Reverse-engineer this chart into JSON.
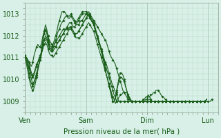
{
  "background_color": "#d8f0e8",
  "grid_color": "#b8d8c8",
  "line_color": "#1a5e1a",
  "marker": "D",
  "marker_size": 2,
  "line_width": 0.8,
  "xlabel": "Pression niveau de la mer( hPa )",
  "xlabel_fontsize": 7.5,
  "tick_label_fontsize": 7,
  "xtick_labels": [
    "Ven",
    "Sam",
    "Dim",
    "Lun"
  ],
  "xtick_positions": [
    0,
    48,
    96,
    144
  ],
  "ylim": [
    1008.5,
    1013.5
  ],
  "yticks": [
    1009,
    1010,
    1011,
    1012,
    1013
  ],
  "xlim": [
    0,
    152
  ],
  "series": [
    [
      1011.0,
      1011.0,
      1010.9,
      1010.8,
      1010.7,
      1010.6,
      1010.8,
      1011.1,
      1011.3,
      1011.5,
      1011.6,
      1011.5,
      1011.5,
      1011.7,
      1012.0,
      1012.2,
      1012.3,
      1012.2,
      1012.0,
      1011.8,
      1011.7,
      1011.6,
      1011.5,
      1011.5,
      1011.5,
      1011.6,
      1011.7,
      1011.8,
      1011.9,
      1012.0,
      1012.1,
      1012.2,
      1012.3,
      1012.4,
      1012.5,
      1012.6,
      1012.6,
      1012.5,
      1012.4,
      1012.4,
      1012.5,
      1012.5,
      1012.5,
      1012.6,
      1012.7,
      1012.7,
      1012.8,
      1012.9,
      1013.0,
      1013.0,
      1013.1,
      1013.0,
      1012.9,
      1012.8,
      1012.7,
      1012.6,
      1012.5,
      1012.4,
      1012.3,
      1012.2,
      1012.1,
      1012.0,
      1011.9,
      1011.8,
      1011.7,
      1011.5,
      1011.3,
      1011.1,
      1011.0,
      1010.9,
      1010.8,
      1010.7,
      1010.5,
      1010.3,
      1010.1,
      1009.9,
      1009.7,
      1009.5,
      1009.4,
      1009.3,
      1009.2,
      1009.1,
      1009.1,
      1009.0,
      1009.0,
      1009.0,
      1009.0,
      1009.0,
      1009.0,
      1009.0,
      1009.0,
      1009.0,
      1009.0,
      1009.0,
      1009.0,
      1009.1,
      1009.1,
      1009.2,
      1009.2,
      1009.3,
      1009.3,
      1009.4,
      1009.4,
      1009.5,
      1009.5,
      1009.5,
      1009.4,
      1009.3,
      1009.2,
      1009.2,
      1009.1,
      1009.1,
      1009.0,
      1009.0,
      1009.0,
      1009.0,
      1009.0,
      1009.0,
      1009.0,
      1009.0,
      1009.0,
      1009.0,
      1009.0,
      1009.0,
      1009.0,
      1009.0,
      1009.0,
      1009.0,
      1009.0,
      1009.0,
      1009.0,
      1009.0,
      1009.0,
      1009.0,
      1009.0,
      1009.0,
      1009.0,
      1009.0,
      1009.0,
      1009.0,
      1009.0,
      1009.0,
      1009.0,
      1009.0,
      1009.0,
      1009.0,
      1009.0,
      1009.1
    ],
    [
      1011.1,
      1011.0,
      1010.9,
      1010.8,
      1010.5,
      1010.3,
      1010.2,
      1010.3,
      1010.5,
      1010.7,
      1010.8,
      1010.9,
      1011.0,
      1011.2,
      1011.4,
      1011.6,
      1011.7,
      1011.6,
      1011.4,
      1011.2,
      1011.1,
      1011.1,
      1011.0,
      1011.1,
      1011.2,
      1011.3,
      1011.4,
      1011.5,
      1011.6,
      1011.7,
      1011.8,
      1011.9,
      1012.0,
      1012.1,
      1012.2,
      1012.3,
      1012.4,
      1012.3,
      1012.2,
      1012.1,
      1012.1,
      1012.1,
      1012.2,
      1012.3,
      1012.4,
      1012.5,
      1012.6,
      1012.7,
      1012.8,
      1012.9,
      1013.0,
      1012.9,
      1012.8,
      1012.7,
      1012.6,
      1012.4,
      1012.2,
      1012.0,
      1011.8,
      1011.6,
      1011.4,
      1011.2,
      1011.0,
      1010.8,
      1010.7,
      1010.5,
      1010.3,
      1010.1,
      1009.9,
      1009.7,
      1009.6,
      1009.4,
      1009.3,
      1009.1,
      1009.0,
      1009.0,
      1009.0,
      1009.0,
      1009.0,
      1009.0,
      1009.0,
      1009.0,
      1009.0,
      1009.0,
      1009.0,
      1009.0,
      1009.0,
      1009.0,
      1009.0,
      1009.0,
      1009.0,
      1009.0,
      1009.0,
      1009.1,
      1009.1,
      1009.2,
      1009.2,
      1009.3,
      1009.2,
      1009.1,
      1009.0,
      1009.0,
      1009.0,
      1009.0,
      1009.0,
      1009.0,
      1009.0,
      1009.0,
      1009.0,
      1009.0,
      1009.0,
      1009.0,
      1009.0,
      1009.0,
      1009.0,
      1009.0,
      1009.0,
      1009.0,
      1009.0,
      1009.0,
      1009.0,
      1009.0,
      1009.0,
      1009.0,
      1009.0,
      1009.0,
      1009.0,
      1009.0,
      1009.0,
      1009.0,
      1009.0,
      1009.0,
      1009.0,
      1009.0,
      1009.0,
      1009.0,
      1009.0,
      1009.0,
      1009.0,
      1009.0,
      1009.0,
      1009.0,
      1009.0,
      1009.1
    ],
    [
      1011.0,
      1011.0,
      1010.8,
      1010.6,
      1010.4,
      1010.2,
      1010.1,
      1010.2,
      1010.4,
      1010.6,
      1010.8,
      1011.0,
      1011.1,
      1011.3,
      1011.6,
      1011.8,
      1011.9,
      1011.8,
      1011.6,
      1011.4,
      1011.3,
      1011.3,
      1011.3,
      1011.4,
      1011.5,
      1011.6,
      1011.7,
      1011.8,
      1011.9,
      1012.0,
      1012.1,
      1012.2,
      1012.3,
      1012.3,
      1012.3,
      1012.4,
      1012.4,
      1012.3,
      1012.2,
      1012.1,
      1012.1,
      1012.1,
      1012.2,
      1012.3,
      1012.4,
      1012.5,
      1012.6,
      1012.7,
      1012.8,
      1012.9,
      1013.0,
      1012.9,
      1012.8,
      1012.7,
      1012.5,
      1012.3,
      1012.1,
      1011.9,
      1011.7,
      1011.5,
      1011.3,
      1011.1,
      1010.9,
      1010.7,
      1010.5,
      1010.3,
      1010.1,
      1009.9,
      1009.7,
      1009.5,
      1009.3,
      1009.2,
      1009.0,
      1009.0,
      1009.0,
      1009.0,
      1009.0,
      1009.0,
      1009.0,
      1009.0,
      1009.0,
      1009.0,
      1009.0,
      1009.0,
      1009.0,
      1009.0,
      1009.0,
      1009.0,
      1009.0,
      1009.0,
      1009.0,
      1009.0,
      1009.0,
      1009.0,
      1009.0,
      1009.0,
      1009.0,
      1009.1,
      1009.1,
      1009.0,
      1009.0,
      1009.0,
      1009.0,
      1009.0,
      1009.0,
      1009.0,
      1009.0,
      1009.0,
      1009.0,
      1009.0,
      1009.0,
      1009.0,
      1009.0,
      1009.0,
      1009.0,
      1009.0,
      1009.0,
      1009.0,
      1009.0,
      1009.0,
      1009.0,
      1009.0,
      1009.0,
      1009.0,
      1009.0,
      1009.0,
      1009.0,
      1009.0,
      1009.0,
      1009.0,
      1009.0,
      1009.0,
      1009.0,
      1009.0,
      1009.0,
      1009.0,
      1009.0,
      1009.0,
      1009.0,
      1009.0,
      1009.0,
      1009.0,
      1009.0,
      1009.1
    ],
    [
      1011.0,
      1010.9,
      1010.7,
      1010.5,
      1010.3,
      1010.0,
      1009.8,
      1009.9,
      1010.1,
      1010.3,
      1010.5,
      1010.7,
      1010.9,
      1011.2,
      1011.5,
      1011.8,
      1012.0,
      1011.9,
      1011.7,
      1011.5,
      1011.4,
      1011.4,
      1011.5,
      1011.6,
      1011.7,
      1011.8,
      1011.9,
      1012.0,
      1012.1,
      1012.2,
      1012.3,
      1012.3,
      1012.3,
      1012.3,
      1012.3,
      1012.3,
      1012.3,
      1012.2,
      1012.1,
      1012.0,
      1011.9,
      1011.9,
      1011.9,
      1011.9,
      1012.0,
      1012.1,
      1012.2,
      1012.3,
      1012.4,
      1012.5,
      1012.6,
      1012.5,
      1012.4,
      1012.3,
      1012.2,
      1012.0,
      1011.8,
      1011.6,
      1011.4,
      1011.2,
      1011.0,
      1010.8,
      1010.6,
      1010.4,
      1010.2,
      1010.0,
      1009.8,
      1009.6,
      1009.4,
      1009.2,
      1009.1,
      1008.9,
      1009.0,
      1009.1,
      1009.2,
      1009.3,
      1009.3,
      1009.4,
      1009.4,
      1009.4,
      1009.4,
      1009.3,
      1009.2,
      1009.1,
      1009.0,
      1009.0,
      1009.0,
      1009.0,
      1009.0,
      1009.0,
      1009.0,
      1009.0,
      1009.0,
      1009.0,
      1009.0,
      1009.0,
      1009.0,
      1009.0,
      1009.0,
      1009.0,
      1009.0,
      1009.0,
      1009.0,
      1009.0,
      1009.0,
      1009.0,
      1009.0,
      1009.0,
      1009.0,
      1009.0,
      1009.0,
      1009.0,
      1009.0,
      1009.0,
      1009.0,
      1009.0,
      1009.0,
      1009.0,
      1009.0,
      1009.0,
      1009.0,
      1009.0,
      1009.0,
      1009.0,
      1009.0,
      1009.0,
      1009.0,
      1009.0,
      1009.0,
      1009.0,
      1009.0,
      1009.0,
      1009.0,
      1009.0,
      1009.0,
      1009.0,
      1009.0,
      1009.0,
      1009.0,
      1009.0,
      1009.0,
      1009.0,
      1009.0,
      1009.1
    ],
    [
      1011.0,
      1010.8,
      1010.6,
      1010.3,
      1010.0,
      1009.8,
      1009.7,
      1009.8,
      1010.0,
      1010.2,
      1010.5,
      1010.8,
      1011.0,
      1011.4,
      1011.8,
      1012.1,
      1012.3,
      1012.1,
      1011.8,
      1011.5,
      1011.3,
      1011.3,
      1011.4,
      1011.6,
      1011.8,
      1012.0,
      1012.2,
      1012.3,
      1012.5,
      1012.6,
      1012.7,
      1012.8,
      1012.9,
      1012.9,
      1012.9,
      1012.9,
      1013.0,
      1012.9,
      1012.8,
      1012.7,
      1012.6,
      1012.7,
      1012.8,
      1012.9,
      1013.0,
      1013.1,
      1013.1,
      1013.1,
      1013.1,
      1013.0,
      1012.9,
      1012.8,
      1012.7,
      1012.6,
      1012.5,
      1012.3,
      1012.1,
      1011.9,
      1011.7,
      1011.5,
      1011.3,
      1011.0,
      1010.8,
      1010.5,
      1010.2,
      1010.0,
      1009.7,
      1009.5,
      1009.3,
      1009.0,
      1009.0,
      1009.1,
      1009.4,
      1009.7,
      1009.9,
      1010.1,
      1010.1,
      1010.0,
      1009.9,
      1009.7,
      1009.5,
      1009.3,
      1009.2,
      1009.0,
      1009.0,
      1009.0,
      1009.0,
      1009.0,
      1009.0,
      1009.0,
      1009.0,
      1009.0,
      1009.0,
      1009.0,
      1009.0,
      1009.0,
      1009.0,
      1009.0,
      1009.0,
      1009.0,
      1009.0,
      1009.0,
      1009.0,
      1009.0,
      1009.0,
      1009.0,
      1009.0,
      1009.0,
      1009.0,
      1009.0,
      1009.0,
      1009.0,
      1009.0,
      1009.0,
      1009.0,
      1009.0,
      1009.0,
      1009.0,
      1009.0,
      1009.0,
      1009.0,
      1009.0,
      1009.0,
      1009.0,
      1009.0,
      1009.0,
      1009.0,
      1009.0,
      1009.0,
      1009.0,
      1009.0,
      1009.0,
      1009.0,
      1009.0,
      1009.0,
      1009.0,
      1009.0,
      1009.0,
      1009.0,
      1009.0,
      1009.0,
      1009.0,
      1009.0,
      1009.1
    ],
    [
      1011.0,
      1010.7,
      1010.4,
      1010.1,
      1009.8,
      1009.6,
      1009.5,
      1009.6,
      1009.8,
      1010.1,
      1010.4,
      1010.7,
      1011.0,
      1011.4,
      1011.8,
      1012.2,
      1012.5,
      1012.3,
      1012.0,
      1011.7,
      1011.5,
      1011.5,
      1011.6,
      1011.8,
      1012.0,
      1012.2,
      1012.5,
      1012.7,
      1012.9,
      1013.1,
      1013.1,
      1013.1,
      1013.0,
      1012.9,
      1012.8,
      1012.8,
      1012.9,
      1012.8,
      1012.7,
      1012.6,
      1012.5,
      1012.6,
      1012.7,
      1012.8,
      1012.9,
      1013.0,
      1013.0,
      1013.0,
      1013.0,
      1013.0,
      1012.9,
      1012.8,
      1012.7,
      1012.6,
      1012.5,
      1012.3,
      1012.1,
      1011.9,
      1011.7,
      1011.5,
      1011.3,
      1011.0,
      1010.8,
      1010.5,
      1010.2,
      1010.0,
      1009.7,
      1009.5,
      1009.2,
      1009.0,
      1009.0,
      1009.2,
      1009.5,
      1009.8,
      1010.1,
      1010.3,
      1010.3,
      1010.2,
      1010.0,
      1009.7,
      1009.5,
      1009.2,
      1009.1,
      1009.0,
      1009.0,
      1009.0,
      1009.0,
      1009.0,
      1009.0,
      1009.0,
      1009.0,
      1009.0,
      1009.0,
      1009.0,
      1009.0,
      1009.0,
      1009.0,
      1009.0,
      1009.0,
      1009.0,
      1009.0,
      1009.0,
      1009.0,
      1009.0,
      1009.0,
      1009.0,
      1009.0,
      1009.0,
      1009.0,
      1009.0,
      1009.0,
      1009.0,
      1009.0,
      1009.0,
      1009.0,
      1009.0,
      1009.0,
      1009.0,
      1009.0,
      1009.0,
      1009.0,
      1009.0,
      1009.0,
      1009.0,
      1009.0,
      1009.0,
      1009.0,
      1009.0,
      1009.0,
      1009.0,
      1009.0,
      1009.0,
      1009.0,
      1009.0,
      1009.0,
      1009.0,
      1009.0,
      1009.0,
      1009.0,
      1009.0,
      1009.0,
      1009.0,
      1009.0,
      1009.1
    ]
  ]
}
